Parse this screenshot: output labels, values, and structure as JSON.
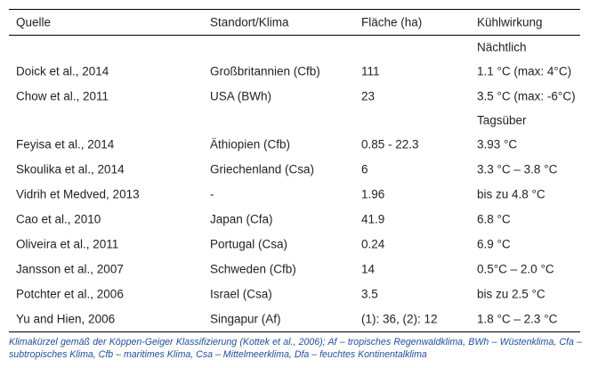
{
  "headers": {
    "quelle": "Quelle",
    "standort": "Standort/Klima",
    "flaeche": "Fläche (ha)",
    "kuehlwirkung": "Kühlwirkung"
  },
  "section_nacht": "Nächtlich",
  "section_tag": "Tagsüber",
  "rows_nacht": [
    {
      "quelle": "Doick et al., 2014",
      "standort": "Großbritannien (Cfb)",
      "flaeche": "111",
      "kuehlung": "1.1 °C (max: 4°C)"
    },
    {
      "quelle": "Chow et al., 2011",
      "standort": "USA (BWh)",
      "flaeche": "23",
      "kuehlung": "3.5 °C (max: -6°C)"
    }
  ],
  "rows_tag": [
    {
      "quelle": "Feyisa et al., 2014",
      "standort": "Äthiopien (Cfb)",
      "flaeche": "0.85 - 22.3",
      "kuehlung": "3.93 °C"
    },
    {
      "quelle": "Skoulika et al., 2014",
      "standort": "Griechenland (Csa)",
      "flaeche": "6",
      "kuehlung": "3.3 °C – 3.8 °C"
    },
    {
      "quelle": "Vidrih et Medved, 2013",
      "standort": "-",
      "flaeche": "1.96",
      "kuehlung": "bis zu 4.8 °C"
    },
    {
      "quelle": "Cao et al., 2010",
      "standort": "Japan (Cfa)",
      "flaeche": "41.9",
      "kuehlung": "6.8 °C"
    },
    {
      "quelle": "Oliveira et al., 2011",
      "standort": "Portugal (Csa)",
      "flaeche": "0.24",
      "kuehlung": "6.9 °C"
    },
    {
      "quelle": "Jansson et al., 2007",
      "standort": "Schweden (Cfb)",
      "flaeche": "14",
      "kuehlung": "0.5°C – 2.0 °C"
    },
    {
      "quelle": "Potchter et al., 2006",
      "standort": "Israel (Csa)",
      "flaeche": "3.5",
      "kuehlung": "bis zu 2.5 °C"
    },
    {
      "quelle": "Yu and Hien, 2006",
      "standort": "Singapur (Af)",
      "flaeche": "(1): 36, (2): 12",
      "kuehlung": "1.8 °C – 2.3 °C"
    }
  ],
  "caption": "Klimakürzel gemäß der Köppen-Geiger Klassifizierung (Kottek et al., 2006); Af – tropisches Regenwaldklima, BWh – Wüstenklima, Cfa – subtropisches Klima, Cfb – maritimes Klima, Csa – Mittelmeerklima, Dfa – feuchtes Kontinentalklima"
}
